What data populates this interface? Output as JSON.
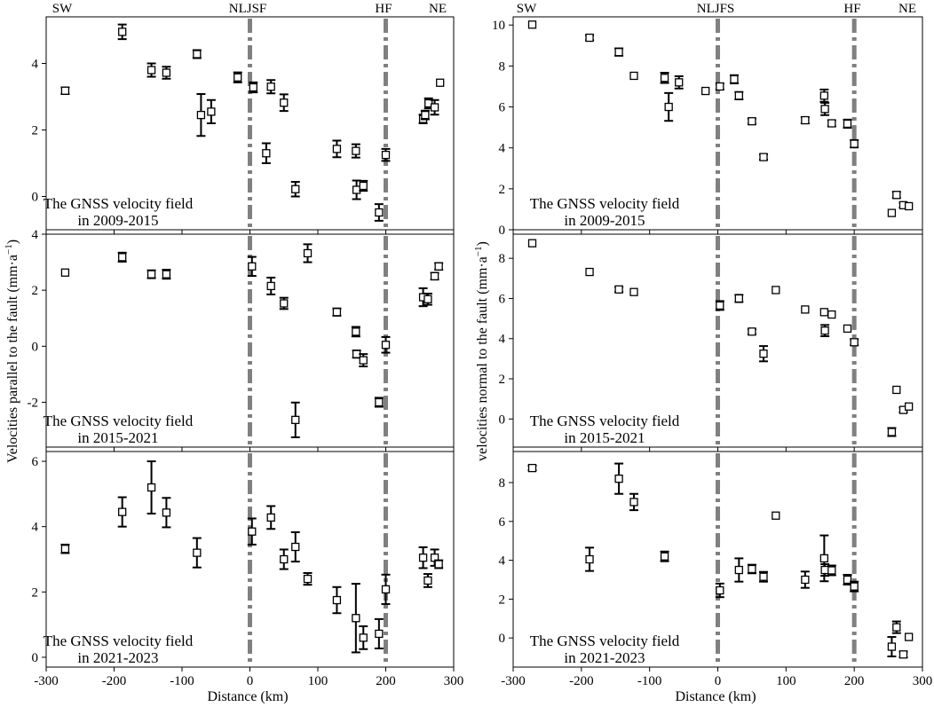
{
  "figure": {
    "xlabel": "Distance (km)",
    "left_ylabel": "Velocities parallel to the fault (mm·a",
    "right_ylabel": "velocities normal to the fault (mm·a",
    "ylabel_exp": "−1",
    "ylabel_close": ")",
    "left_top_labels": {
      "sw": "SW",
      "fault1": "NLJSF",
      "fault2": "HF",
      "ne": "NE"
    },
    "right_top_labels": {
      "sw": "SW",
      "fault1": "NLJFS",
      "fault2": "HF",
      "ne": "NE"
    },
    "annotation_line1": "The GNSS velocity field",
    "fault_positions_km": [
      0,
      200
    ],
    "fault_line_color": "#808080"
  },
  "chart_data": [
    {
      "type": "scatter",
      "id": "left-top",
      "column": "left",
      "row": 0,
      "annotation_line2": "in 2009-2015",
      "xlim": [
        -300,
        300
      ],
      "ylim": [
        -1.0,
        5.4
      ],
      "yticks": [
        0,
        2,
        4
      ],
      "xticks": [
        -300,
        -200,
        -100,
        0,
        100,
        200,
        300
      ],
      "show_xticklabels": false,
      "points": [
        {
          "x": -272,
          "y": 3.18,
          "e": 0.1
        },
        {
          "x": -188,
          "y": 4.95,
          "e": 0.22
        },
        {
          "x": -145,
          "y": 3.8,
          "e": 0.2
        },
        {
          "x": -123,
          "y": 3.72,
          "e": 0.18
        },
        {
          "x": -78,
          "y": 4.28,
          "e": 0.12
        },
        {
          "x": -72,
          "y": 2.45,
          "e": 0.63
        },
        {
          "x": -57,
          "y": 2.55,
          "e": 0.35
        },
        {
          "x": -18,
          "y": 3.58,
          "e": 0.15
        },
        {
          "x": 5,
          "y": 3.28,
          "e": 0.15
        },
        {
          "x": 24,
          "y": 1.3,
          "e": 0.3
        },
        {
          "x": 31,
          "y": 3.3,
          "e": 0.2
        },
        {
          "x": 50,
          "y": 2.82,
          "e": 0.25
        },
        {
          "x": 67,
          "y": 0.22,
          "e": 0.22
        },
        {
          "x": 128,
          "y": 1.43,
          "e": 0.25
        },
        {
          "x": 156,
          "y": 1.37,
          "e": 0.2
        },
        {
          "x": 157,
          "y": 0.2,
          "e": 0.28
        },
        {
          "x": 167,
          "y": 0.32,
          "e": 0.15
        },
        {
          "x": 190,
          "y": -0.48,
          "e": 0.25
        },
        {
          "x": 200,
          "y": 1.25,
          "e": 0.18
        },
        {
          "x": 255,
          "y": 2.33,
          "e": 0.13
        },
        {
          "x": 258,
          "y": 2.45,
          "e": 0.13
        },
        {
          "x": 263,
          "y": 2.8,
          "e": 0.15
        },
        {
          "x": 272,
          "y": 2.68,
          "e": 0.22
        },
        {
          "x": 280,
          "y": 3.42,
          "e": 0
        }
      ]
    },
    {
      "type": "scatter",
      "id": "left-middle",
      "column": "left",
      "row": 1,
      "annotation_line2": "in 2015-2021",
      "xlim": [
        -300,
        300
      ],
      "ylim": [
        -3.6,
        4.0
      ],
      "yticks": [
        -2,
        0,
        2,
        4
      ],
      "xticks": [
        -300,
        -200,
        -100,
        0,
        100,
        200,
        300
      ],
      "show_xticklabels": false,
      "points": [
        {
          "x": -272,
          "y": 2.63,
          "e": 0
        },
        {
          "x": -188,
          "y": 3.18,
          "e": 0.16
        },
        {
          "x": -145,
          "y": 2.57,
          "e": 0.14
        },
        {
          "x": -123,
          "y": 2.57,
          "e": 0.16
        },
        {
          "x": 3,
          "y": 2.85,
          "e": 0.34
        },
        {
          "x": 31,
          "y": 2.15,
          "e": 0.3
        },
        {
          "x": 50,
          "y": 1.53,
          "e": 0.2
        },
        {
          "x": 67,
          "y": -2.63,
          "e": 0.62
        },
        {
          "x": 85,
          "y": 3.32,
          "e": 0.32
        },
        {
          "x": 128,
          "y": 1.22,
          "e": 0.13
        },
        {
          "x": 156,
          "y": 0.52,
          "e": 0.17
        },
        {
          "x": 157,
          "y": -0.28,
          "e": 0.13
        },
        {
          "x": 167,
          "y": -0.5,
          "e": 0.22
        },
        {
          "x": 190,
          "y": -2.0,
          "e": 0.16
        },
        {
          "x": 200,
          "y": 0.05,
          "e": 0.28
        },
        {
          "x": 255,
          "y": 1.75,
          "e": 0.32
        },
        {
          "x": 262,
          "y": 1.68,
          "e": 0.2
        },
        {
          "x": 272,
          "y": 2.5,
          "e": 0.12
        },
        {
          "x": 278,
          "y": 2.85,
          "e": 0.12
        }
      ]
    },
    {
      "type": "scatter",
      "id": "left-bottom",
      "column": "left",
      "row": 2,
      "annotation_line2": "in 2021-2023",
      "xlim": [
        -300,
        300
      ],
      "ylim": [
        -0.3,
        6.3
      ],
      "yticks": [
        0,
        2,
        4,
        6
      ],
      "xticks": [
        -300,
        -200,
        -100,
        0,
        100,
        200,
        300
      ],
      "show_xticklabels": true,
      "points": [
        {
          "x": -272,
          "y": 3.32,
          "e": 0.13
        },
        {
          "x": -188,
          "y": 4.45,
          "e": 0.45
        },
        {
          "x": -145,
          "y": 5.2,
          "e": 0.8
        },
        {
          "x": -123,
          "y": 4.43,
          "e": 0.45
        },
        {
          "x": -78,
          "y": 3.2,
          "e": 0.45
        },
        {
          "x": 3,
          "y": 3.85,
          "e": 0.4
        },
        {
          "x": 31,
          "y": 4.28,
          "e": 0.35
        },
        {
          "x": 50,
          "y": 3.0,
          "e": 0.3
        },
        {
          "x": 67,
          "y": 3.38,
          "e": 0.45
        },
        {
          "x": 85,
          "y": 2.4,
          "e": 0.18
        },
        {
          "x": 128,
          "y": 1.75,
          "e": 0.4
        },
        {
          "x": 156,
          "y": 1.2,
          "e": 1.05
        },
        {
          "x": 167,
          "y": 0.6,
          "e": 0.35
        },
        {
          "x": 190,
          "y": 0.72,
          "e": 0.45
        },
        {
          "x": 200,
          "y": 2.08,
          "e": 0.45
        },
        {
          "x": 255,
          "y": 3.05,
          "e": 0.32
        },
        {
          "x": 262,
          "y": 2.35,
          "e": 0.2
        },
        {
          "x": 272,
          "y": 3.05,
          "e": 0.25
        },
        {
          "x": 278,
          "y": 2.85,
          "e": 0.12
        }
      ]
    },
    {
      "type": "scatter",
      "id": "right-top",
      "column": "right",
      "row": 0,
      "annotation_line2": "in 2009-2015",
      "xlim": [
        -300,
        300
      ],
      "ylim": [
        0,
        10.4
      ],
      "yticks": [
        0,
        2,
        4,
        6,
        8,
        10
      ],
      "xticks": [
        -300,
        -200,
        -100,
        0,
        100,
        200,
        300
      ],
      "show_xticklabels": false,
      "points": [
        {
          "x": -272,
          "y": 10.02,
          "e": 0
        },
        {
          "x": -188,
          "y": 9.38,
          "e": 0.12
        },
        {
          "x": -145,
          "y": 8.68,
          "e": 0.18
        },
        {
          "x": -123,
          "y": 7.52,
          "e": 0
        },
        {
          "x": -78,
          "y": 7.42,
          "e": 0.25
        },
        {
          "x": -72,
          "y": 6.0,
          "e": 0.68
        },
        {
          "x": -57,
          "y": 7.2,
          "e": 0.3
        },
        {
          "x": -18,
          "y": 6.78,
          "e": 0
        },
        {
          "x": 3,
          "y": 7.0,
          "e": 0.15
        },
        {
          "x": 24,
          "y": 7.35,
          "e": 0.2
        },
        {
          "x": 31,
          "y": 6.55,
          "e": 0.18
        },
        {
          "x": 50,
          "y": 5.3,
          "e": 0.13
        },
        {
          "x": 67,
          "y": 3.55,
          "e": 0.13
        },
        {
          "x": 128,
          "y": 5.35,
          "e": 0.15
        },
        {
          "x": 156,
          "y": 6.55,
          "e": 0.3
        },
        {
          "x": 157,
          "y": 5.9,
          "e": 0.3
        },
        {
          "x": 167,
          "y": 5.2,
          "e": 0.15
        },
        {
          "x": 190,
          "y": 5.18,
          "e": 0.2
        },
        {
          "x": 200,
          "y": 4.2,
          "e": 0.18
        },
        {
          "x": 255,
          "y": 0.82,
          "e": 0
        },
        {
          "x": 262,
          "y": 1.7,
          "e": 0.15
        },
        {
          "x": 272,
          "y": 1.2,
          "e": 0.12
        },
        {
          "x": 280,
          "y": 1.15,
          "e": 0
        }
      ]
    },
    {
      "type": "scatter",
      "id": "right-middle",
      "column": "right",
      "row": 1,
      "annotation_line2": "in 2015-2021",
      "xlim": [
        -300,
        300
      ],
      "ylim": [
        -1.4,
        9.2
      ],
      "yticks": [
        0,
        2,
        4,
        6,
        8
      ],
      "xticks": [
        -300,
        -200,
        -100,
        0,
        100,
        200,
        300
      ],
      "show_xticklabels": false,
      "points": [
        {
          "x": -272,
          "y": 8.75,
          "e": 0
        },
        {
          "x": -188,
          "y": 7.32,
          "e": 0
        },
        {
          "x": -145,
          "y": 6.45,
          "e": 0.12
        },
        {
          "x": -123,
          "y": 6.32,
          "e": 0
        },
        {
          "x": 3,
          "y": 5.65,
          "e": 0.22
        },
        {
          "x": 31,
          "y": 6.0,
          "e": 0.18
        },
        {
          "x": 50,
          "y": 4.35,
          "e": 0.12
        },
        {
          "x": 67,
          "y": 3.25,
          "e": 0.38
        },
        {
          "x": 85,
          "y": 6.42,
          "e": 0
        },
        {
          "x": 128,
          "y": 5.45,
          "e": 0
        },
        {
          "x": 156,
          "y": 5.32,
          "e": 0
        },
        {
          "x": 157,
          "y": 4.4,
          "e": 0.28
        },
        {
          "x": 167,
          "y": 5.2,
          "e": 0
        },
        {
          "x": 190,
          "y": 4.5,
          "e": 0
        },
        {
          "x": 200,
          "y": 3.82,
          "e": 0.15
        },
        {
          "x": 255,
          "y": -0.65,
          "e": 0.2
        },
        {
          "x": 262,
          "y": 1.45,
          "e": 0
        },
        {
          "x": 272,
          "y": 0.45,
          "e": 0.12
        },
        {
          "x": 280,
          "y": 0.62,
          "e": 0
        }
      ]
    },
    {
      "type": "scatter",
      "id": "right-bottom",
      "column": "right",
      "row": 2,
      "annotation_line2": "in 2021-2023",
      "xlim": [
        -300,
        300
      ],
      "ylim": [
        -1.5,
        9.6
      ],
      "yticks": [
        0,
        2,
        4,
        6,
        8
      ],
      "xticks": [
        -300,
        -200,
        -100,
        0,
        100,
        200,
        300
      ],
      "show_xticklabels": true,
      "points": [
        {
          "x": -272,
          "y": 8.75,
          "e": 0.12
        },
        {
          "x": -188,
          "y": 4.05,
          "e": 0.6
        },
        {
          "x": -145,
          "y": 8.2,
          "e": 0.78
        },
        {
          "x": -123,
          "y": 7.0,
          "e": 0.42
        },
        {
          "x": -78,
          "y": 4.2,
          "e": 0.25
        },
        {
          "x": 3,
          "y": 2.45,
          "e": 0.35
        },
        {
          "x": 31,
          "y": 3.5,
          "e": 0.6
        },
        {
          "x": 50,
          "y": 3.55,
          "e": 0.22
        },
        {
          "x": 67,
          "y": 3.15,
          "e": 0.25
        },
        {
          "x": 85,
          "y": 6.3,
          "e": 0
        },
        {
          "x": 128,
          "y": 3.0,
          "e": 0.42
        },
        {
          "x": 156,
          "y": 4.1,
          "e": 1.18
        },
        {
          "x": 157,
          "y": 3.5,
          "e": 0.3
        },
        {
          "x": 167,
          "y": 3.48,
          "e": 0.25
        },
        {
          "x": 190,
          "y": 3.0,
          "e": 0.25
        },
        {
          "x": 200,
          "y": 2.65,
          "e": 0.25
        },
        {
          "x": 255,
          "y": -0.45,
          "e": 0.5
        },
        {
          "x": 262,
          "y": 0.55,
          "e": 0.3
        },
        {
          "x": 272,
          "y": -0.85,
          "e": 0.15
        },
        {
          "x": 280,
          "y": 0.05,
          "e": 0
        }
      ]
    }
  ]
}
